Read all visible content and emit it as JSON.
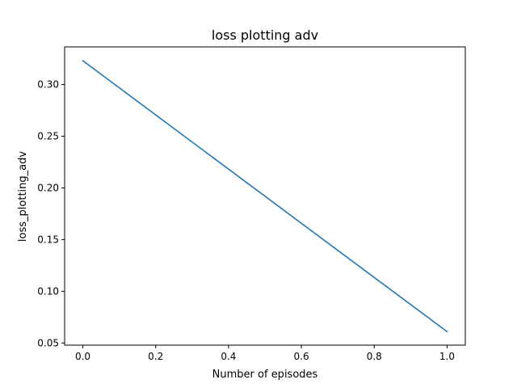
{
  "chart_data": {
    "type": "line",
    "title": "loss plotting adv",
    "xlabel": "Number of episodes",
    "ylabel": "loss_plotting_adv",
    "xlim": [
      -0.05,
      1.05
    ],
    "ylim": [
      0.0479,
      0.3364
    ],
    "xticks": [
      0.0,
      0.2,
      0.4,
      0.6,
      0.8,
      1.0
    ],
    "xtick_labels": [
      "0.0",
      "0.2",
      "0.4",
      "0.6",
      "0.8",
      "1.0"
    ],
    "yticks": [
      0.05,
      0.1,
      0.15,
      0.2,
      0.25,
      0.3
    ],
    "ytick_labels": [
      "0.05",
      "0.10",
      "0.15",
      "0.20",
      "0.25",
      "0.30"
    ],
    "grid": false,
    "series": [
      {
        "color": "#1f77b4",
        "x": [
          0.0,
          1.0
        ],
        "y": [
          0.323,
          0.061
        ]
      }
    ]
  }
}
